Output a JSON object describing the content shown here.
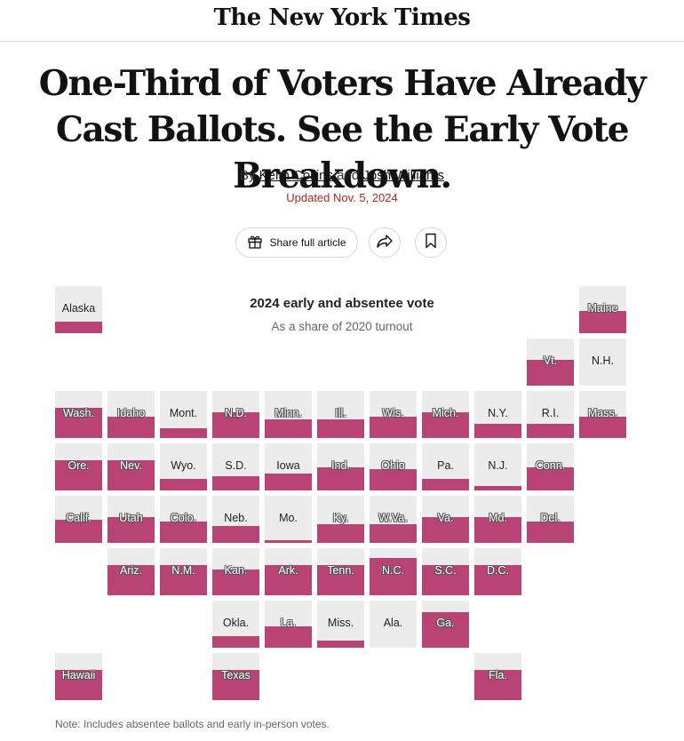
{
  "masthead": {
    "logo": "The New York Times"
  },
  "article": {
    "headline": "One-Third of Voters Have Already Cast Ballots. See the Early Vote Breakdown.",
    "byline_prefix": "By",
    "author_1": "Keith Collins",
    "byline_and": "and",
    "author_2": "Josh Williams",
    "updated": "Updated Nov. 5, 2024"
  },
  "toolbar": {
    "share_label": "Share full article",
    "share_icon": "gift-icon",
    "forward_icon": "forward-arrow-icon",
    "bookmark_icon": "bookmark-icon"
  },
  "colors": {
    "fill": "#b84374",
    "empty": "#ececec",
    "accent": "#b3261e"
  },
  "chart_data": {
    "type": "tile-map",
    "title": "2024 early and absentee vote",
    "subtitle": "As a share of 2020 turnout",
    "note": "Note: Includes absentee ballots and early in-person votes.",
    "states": [
      {
        "label": "Alaska",
        "col": 0,
        "row": 0,
        "share": 0.25
      },
      {
        "label": "Maine",
        "col": 10,
        "row": 0,
        "share": 0.47
      },
      {
        "label": "Vt.",
        "col": 9,
        "row": 1,
        "share": 0.55
      },
      {
        "label": "N.H.",
        "col": 10,
        "row": 1,
        "share": 0.0
      },
      {
        "label": "Wash.",
        "col": 0,
        "row": 2,
        "share": 0.65
      },
      {
        "label": "Idaho",
        "col": 1,
        "row": 2,
        "share": 0.46
      },
      {
        "label": "Mont.",
        "col": 2,
        "row": 2,
        "share": 0.2
      },
      {
        "label": "N.D.",
        "col": 3,
        "row": 2,
        "share": 0.55
      },
      {
        "label": "Minn.",
        "col": 4,
        "row": 2,
        "share": 0.4
      },
      {
        "label": "Ill.",
        "col": 5,
        "row": 2,
        "share": 0.4
      },
      {
        "label": "Wis.",
        "col": 6,
        "row": 2,
        "share": 0.45
      },
      {
        "label": "Mich.",
        "col": 7,
        "row": 2,
        "share": 0.55
      },
      {
        "label": "N.Y.",
        "col": 8,
        "row": 2,
        "share": 0.3
      },
      {
        "label": "R.I.",
        "col": 9,
        "row": 2,
        "share": 0.3
      },
      {
        "label": "Mass.",
        "col": 10,
        "row": 2,
        "share": 0.45
      },
      {
        "label": "Ore.",
        "col": 0,
        "row": 3,
        "share": 0.65
      },
      {
        "label": "Nev.",
        "col": 1,
        "row": 3,
        "share": 0.65
      },
      {
        "label": "Wyo.",
        "col": 2,
        "row": 3,
        "share": 0.25
      },
      {
        "label": "S.D.",
        "col": 3,
        "row": 3,
        "share": 0.3
      },
      {
        "label": "Iowa",
        "col": 4,
        "row": 3,
        "share": 0.35
      },
      {
        "label": "Ind.",
        "col": 5,
        "row": 3,
        "share": 0.5
      },
      {
        "label": "Ohio",
        "col": 6,
        "row": 3,
        "share": 0.45
      },
      {
        "label": "Pa.",
        "col": 7,
        "row": 3,
        "share": 0.25
      },
      {
        "label": "N.J.",
        "col": 8,
        "row": 3,
        "share": 0.1
      },
      {
        "label": "Conn.",
        "col": 9,
        "row": 3,
        "share": 0.5
      },
      {
        "label": "Calif.",
        "col": 0,
        "row": 4,
        "share": 0.5
      },
      {
        "label": "Utah",
        "col": 1,
        "row": 4,
        "share": 0.55
      },
      {
        "label": "Colo.",
        "col": 2,
        "row": 4,
        "share": 0.45
      },
      {
        "label": "Neb.",
        "col": 3,
        "row": 4,
        "share": 0.35
      },
      {
        "label": "Mo.",
        "col": 4,
        "row": 4,
        "share": 0.05
      },
      {
        "label": "Ky.",
        "col": 5,
        "row": 4,
        "share": 0.4
      },
      {
        "label": "W.Va.",
        "col": 6,
        "row": 4,
        "share": 0.4
      },
      {
        "label": "Va.",
        "col": 7,
        "row": 4,
        "share": 0.55
      },
      {
        "label": "Md.",
        "col": 8,
        "row": 4,
        "share": 0.55
      },
      {
        "label": "Del.",
        "col": 9,
        "row": 4,
        "share": 0.45
      },
      {
        "label": "Ariz.",
        "col": 1,
        "row": 5,
        "share": 0.65
      },
      {
        "label": "N.M.",
        "col": 2,
        "row": 5,
        "share": 0.65
      },
      {
        "label": "Kan.",
        "col": 3,
        "row": 5,
        "share": 0.55
      },
      {
        "label": "Ark.",
        "col": 4,
        "row": 5,
        "share": 0.65
      },
      {
        "label": "Tenn.",
        "col": 5,
        "row": 5,
        "share": 0.65
      },
      {
        "label": "N.C.",
        "col": 6,
        "row": 5,
        "share": 0.8
      },
      {
        "label": "S.C.",
        "col": 7,
        "row": 5,
        "share": 0.65
      },
      {
        "label": "D.C.",
        "col": 8,
        "row": 5,
        "share": 0.65
      },
      {
        "label": "Okla.",
        "col": 3,
        "row": 6,
        "share": 0.25
      },
      {
        "label": "La.",
        "col": 4,
        "row": 6,
        "share": 0.45
      },
      {
        "label": "Miss.",
        "col": 5,
        "row": 6,
        "share": 0.15
      },
      {
        "label": "Ala.",
        "col": 6,
        "row": 6,
        "share": 0.0
      },
      {
        "label": "Ga.",
        "col": 7,
        "row": 6,
        "share": 0.75
      },
      {
        "label": "Hawaii",
        "col": 0,
        "row": 7,
        "share": 0.65
      },
      {
        "label": "Texas",
        "col": 3,
        "row": 7,
        "share": 0.65
      },
      {
        "label": "Fla.",
        "col": 8,
        "row": 7,
        "share": 0.65
      }
    ]
  }
}
